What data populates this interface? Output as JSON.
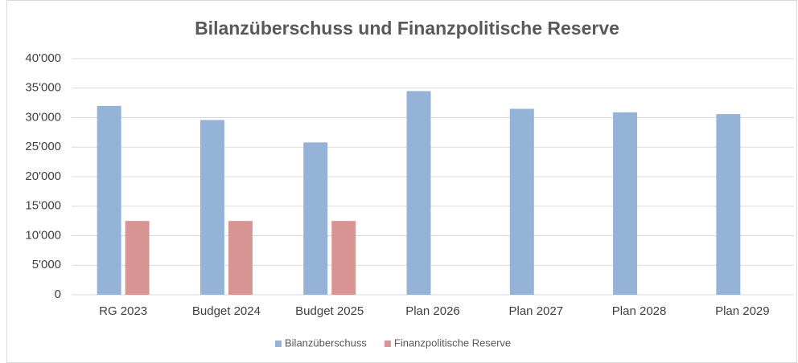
{
  "chart_data": {
    "type": "bar",
    "title": "Bilanzüberschuss und Finanzpolitische Reserve",
    "categories": [
      "RG 2023",
      "Budget 2024",
      "Budget 2025",
      "Plan 2026",
      "Plan 2027",
      "Plan 2028",
      "Plan 2029"
    ],
    "series": [
      {
        "name": "Bilanzüberschuss",
        "color": "#95b3d7",
        "values": [
          32000,
          29600,
          25800,
          34500,
          31500,
          30900,
          30600
        ]
      },
      {
        "name": "Finanzpolitische Reserve",
        "color": "#d99594",
        "values": [
          12500,
          12500,
          12500,
          null,
          null,
          null,
          null
        ]
      }
    ],
    "ylim": [
      0,
      40000
    ],
    "yticks": [
      0,
      {
        "value": 5000,
        "label": "5'000"
      },
      {
        "value": 10000,
        "label": "10'000"
      },
      {
        "value": 15000,
        "label": "15'000"
      },
      {
        "value": 20000,
        "label": "20'000"
      },
      {
        "value": 25000,
        "label": "25'000"
      },
      {
        "value": 30000,
        "label": "30'000"
      },
      {
        "value": 35000,
        "label": "35'000"
      },
      {
        "value": 40000,
        "label": "40'000"
      }
    ],
    "grid": true,
    "legend": "bottom"
  }
}
